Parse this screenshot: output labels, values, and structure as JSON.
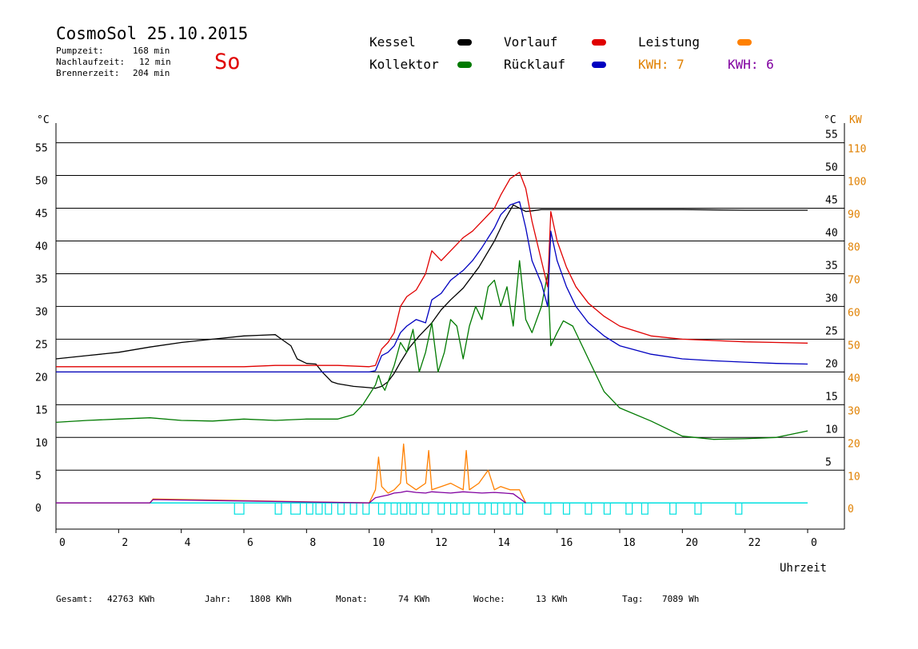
{
  "header": {
    "title": "CosmoSol 25.10.2015",
    "pumpzeit_label": "Pumpzeit:",
    "pumpzeit_value": "168 min",
    "nachlaufzeit_label": "Nachlaufzeit:",
    "nachlaufzeit_value": "12 min",
    "brennerzeit_label": "Brennerzeit:",
    "brennerzeit_value": "204 min",
    "day": "So"
  },
  "legend": {
    "kessel": "Kessel",
    "kollektor": "Kollektor",
    "vorlauf": "Vorlauf",
    "ruecklauf": "Rücklauf",
    "leistung": "Leistung",
    "kwh_orange": "KWH: 7",
    "kwh_purple": "KWH: 6"
  },
  "colors": {
    "kessel": "#000000",
    "kollektor": "#007a00",
    "vorlauf": "#e00000",
    "ruecklauf": "#0000c0",
    "leistung": "#ff8000",
    "kwh_purple": "#8000a0",
    "pump": "#00e0e0",
    "kw_axis": "#e08000"
  },
  "footer": {
    "gesamt_label": "Gesamt:",
    "gesamt_value": "42763 KWh",
    "jahr_label": "Jahr:",
    "jahr_value": "1808 KWh",
    "monat_label": "Monat:",
    "monat_value": "74 KWh",
    "woche_label": "Woche:",
    "woche_value": "13 KWh",
    "tag_label": "Tag:",
    "tag_value": "7089 Wh"
  },
  "chart_data": {
    "type": "line",
    "xlabel": "Uhrzeit",
    "ylabel_left": "°C",
    "ylabel_right_1": "°C",
    "ylabel_right_2": "KW",
    "xlim": [
      0,
      24
    ],
    "ylim": [
      -4,
      58
    ],
    "x_ticks": [
      "0",
      "2",
      "4",
      "6",
      "8",
      "10",
      "12",
      "14",
      "16",
      "18",
      "20",
      "22",
      "0"
    ],
    "y_ticks_left": [
      "0",
      "5",
      "10",
      "15",
      "20",
      "25",
      "30",
      "35",
      "40",
      "45",
      "50",
      "55"
    ],
    "y_ticks_right": [
      "5",
      "10",
      "15",
      "20",
      "25",
      "30",
      "35",
      "40",
      "45",
      "50",
      "55"
    ],
    "kw_ticks": [
      "0",
      "10",
      "20",
      "30",
      "40",
      "50",
      "60",
      "70",
      "80",
      "90",
      "100",
      "110"
    ],
    "grid": true,
    "series": [
      {
        "name": "Kessel",
        "key": "kessel",
        "x": [
          0,
          1,
          2,
          3,
          4,
          5,
          6,
          6.5,
          7,
          7.2,
          7.5,
          7.7,
          8,
          8.3,
          8.5,
          8.8,
          9,
          9.5,
          10,
          10.2,
          10.4,
          10.6,
          10.8,
          11,
          11.3,
          11.6,
          12,
          12.3,
          12.6,
          13,
          13.5,
          14,
          14.3,
          14.6,
          14.8,
          15,
          15.2,
          15.5,
          15.7,
          16,
          18,
          20,
          22,
          24
        ],
        "y": [
          22,
          22.5,
          23,
          23.8,
          24.5,
          25,
          25.5,
          25.6,
          25.7,
          25,
          24,
          22,
          21.3,
          21.2,
          20,
          18.5,
          18.2,
          17.8,
          17.6,
          17.5,
          17.8,
          18.5,
          19.8,
          21.5,
          23.8,
          25.5,
          27.5,
          29.5,
          31,
          32.8,
          36,
          40,
          43,
          45.5,
          45,
          44.5,
          44.6,
          44.8,
          44.8,
          44.8,
          44.8,
          44.8,
          44.7,
          44.7
        ]
      },
      {
        "name": "Kollektor",
        "key": "kollektor",
        "x": [
          0,
          1,
          2,
          3,
          4,
          5,
          6,
          7,
          8,
          9,
          9.5,
          9.8,
          10,
          10.2,
          10.3,
          10.4,
          10.5,
          10.6,
          10.8,
          11,
          11.2,
          11.4,
          11.6,
          11.8,
          12,
          12.2,
          12.4,
          12.6,
          12.8,
          13,
          13.2,
          13.4,
          13.6,
          13.8,
          14,
          14.2,
          14.4,
          14.6,
          14.8,
          15,
          15.2,
          15.5,
          15.7,
          15.8,
          16,
          16.2,
          16.5,
          17,
          17.5,
          18,
          19,
          20,
          21,
          22,
          23,
          24
        ],
        "y": [
          12.3,
          12.6,
          12.8,
          13,
          12.6,
          12.5,
          12.8,
          12.6,
          12.8,
          12.8,
          13.5,
          15,
          16.5,
          18,
          19.5,
          18,
          17.2,
          18.5,
          21,
          24.5,
          23,
          26.5,
          20,
          23,
          27.5,
          20,
          23,
          28,
          27,
          22,
          27,
          30,
          28,
          33,
          34,
          30,
          33,
          27,
          37,
          28,
          26,
          30,
          35,
          24,
          26,
          27.8,
          27,
          22,
          17,
          14.5,
          12.5,
          10.2,
          9.7,
          9.8,
          10,
          11
        ]
      },
      {
        "name": "Vorlauf",
        "key": "vorlauf",
        "x": [
          0,
          2,
          4,
          6,
          7,
          8,
          9,
          10,
          10.2,
          10.4,
          10.6,
          10.8,
          11,
          11.2,
          11.5,
          11.8,
          12,
          12.3,
          12.6,
          13,
          13.3,
          13.6,
          14,
          14.2,
          14.5,
          14.8,
          15,
          15.2,
          15.5,
          15.7,
          15.8,
          16,
          16.3,
          16.6,
          17,
          17.5,
          18,
          19,
          20,
          21,
          22,
          23,
          24
        ],
        "y": [
          20.8,
          20.8,
          20.8,
          20.8,
          21,
          21,
          21,
          20.8,
          21,
          23.5,
          24.5,
          26,
          30,
          31.5,
          32.5,
          35,
          38.5,
          37,
          38.5,
          40.5,
          41.5,
          43,
          45,
          47,
          49.5,
          50.5,
          48,
          43,
          37,
          33,
          44.5,
          40,
          36,
          33,
          30.5,
          28.5,
          27,
          25.5,
          25,
          24.8,
          24.6,
          24.5,
          24.4
        ]
      },
      {
        "name": "Rücklauf",
        "key": "ruecklauf",
        "x": [
          0,
          2,
          4,
          6,
          7,
          8,
          9,
          10,
          10.2,
          10.4,
          10.6,
          10.8,
          11,
          11.2,
          11.5,
          11.8,
          12,
          12.3,
          12.6,
          13,
          13.3,
          13.6,
          14,
          14.2,
          14.5,
          14.8,
          15,
          15.2,
          15.5,
          15.7,
          15.8,
          16,
          16.3,
          16.6,
          17,
          17.5,
          18,
          19,
          20,
          21,
          22,
          23,
          24
        ],
        "y": [
          20,
          20,
          20,
          20,
          20,
          20,
          20,
          20,
          20.2,
          22.5,
          23,
          24,
          26,
          27,
          28,
          27.5,
          31,
          32,
          34,
          35.5,
          37,
          39,
          42,
          44,
          45.5,
          46,
          42,
          37,
          33.5,
          30,
          41.5,
          37,
          33,
          30,
          27.5,
          25.5,
          24,
          22.7,
          22,
          21.7,
          21.5,
          21.3,
          21.2
        ]
      },
      {
        "name": "Leistung",
        "key": "leistung",
        "x": [
          0,
          3,
          3.1,
          10,
          10.2,
          10.3,
          10.4,
          10.6,
          10.8,
          11,
          11.1,
          11.2,
          11.5,
          11.8,
          11.9,
          12,
          12.3,
          12.6,
          13,
          13.1,
          13.2,
          13.5,
          13.8,
          14,
          14.2,
          14.5,
          14.8,
          15
        ],
        "y": [
          0,
          0,
          0.6,
          0,
          2,
          7,
          2.5,
          1.5,
          2,
          3,
          9,
          3,
          2,
          3,
          8,
          2,
          2.5,
          3,
          2,
          8,
          2,
          3,
          5,
          2,
          2.5,
          2,
          2,
          0
        ]
      },
      {
        "name": "KWH",
        "key": "kwh_purple",
        "x": [
          0,
          3,
          3.1,
          10,
          10.2,
          10.4,
          10.6,
          10.8,
          11,
          11.2,
          11.5,
          11.8,
          12,
          12.3,
          12.6,
          13,
          13.3,
          13.6,
          14,
          14.3,
          14.6,
          15
        ],
        "y": [
          0,
          0,
          0.5,
          0,
          0.8,
          1,
          1.2,
          1.5,
          1.6,
          1.8,
          1.6,
          1.5,
          1.7,
          1.6,
          1.5,
          1.7,
          1.6,
          1.5,
          1.6,
          1.5,
          1.4,
          0
        ]
      }
    ],
    "pump_pulses": [
      [
        5.7,
        6.0
      ],
      [
        7.0,
        7.2
      ],
      [
        7.5,
        7.8
      ],
      [
        8.0,
        8.2
      ],
      [
        8.3,
        8.5
      ],
      [
        8.6,
        8.8
      ],
      [
        9.0,
        9.2
      ],
      [
        9.4,
        9.6
      ],
      [
        9.8,
        10.0
      ],
      [
        10.3,
        10.5
      ],
      [
        10.7,
        10.9
      ],
      [
        11.0,
        11.2
      ],
      [
        11.3,
        11.5
      ],
      [
        11.7,
        11.9
      ],
      [
        12.2,
        12.4
      ],
      [
        12.6,
        12.8
      ],
      [
        13.0,
        13.2
      ],
      [
        13.5,
        13.7
      ],
      [
        13.9,
        14.1
      ],
      [
        14.3,
        14.5
      ],
      [
        14.7,
        14.9
      ],
      [
        15.6,
        15.8
      ],
      [
        16.2,
        16.4
      ],
      [
        16.9,
        17.1
      ],
      [
        17.5,
        17.7
      ],
      [
        18.2,
        18.4
      ],
      [
        18.7,
        18.9
      ],
      [
        19.6,
        19.8
      ],
      [
        20.4,
        20.6
      ],
      [
        21.7,
        21.9
      ]
    ]
  }
}
